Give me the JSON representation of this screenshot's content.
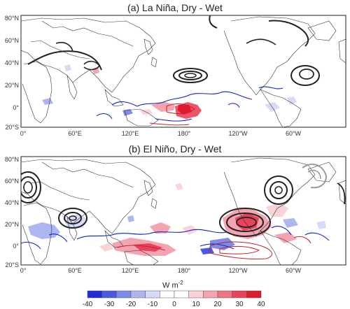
{
  "panels": [
    {
      "title": "(a) La Niña, Dry - Wet",
      "lat_ticks": [
        "80°N",
        "60°N",
        "40°N",
        "20°N",
        "0°",
        "20°S"
      ],
      "lon_ticks": [
        "0°",
        "60°E",
        "120°E",
        "180°",
        "120°W",
        "60°W"
      ]
    },
    {
      "title": "(b) El Niño, Dry - Wet",
      "lat_ticks": [
        "80°N",
        "60°N",
        "40°N",
        "20°N",
        "0°",
        "20°S"
      ],
      "lon_ticks": [
        "0°",
        "60°E",
        "120°E",
        "180°",
        "120°W",
        "60°W"
      ]
    }
  ],
  "colorbar": {
    "ticks": [
      "-40",
      "-30",
      "-20",
      "-10",
      "0",
      "10",
      "20",
      "30",
      "40"
    ],
    "colors": [
      "#1e2bd6",
      "#4a5ae0",
      "#7e8ce8",
      "#adb6f0",
      "#d6dbf7",
      "#ffffff",
      "#ffffff",
      "#f9d3d8",
      "#f4a4b0",
      "#ee7484",
      "#e8435a",
      "#e01a2e"
    ],
    "units": "W m",
    "units_exp": "-2"
  },
  "colors": {
    "land_outline": "#333333",
    "contour_positive": "#222222",
    "contour_negative": "#0f1fd0",
    "contour_red": "#c8202e",
    "contour_gray": "#9a9a9a"
  }
}
